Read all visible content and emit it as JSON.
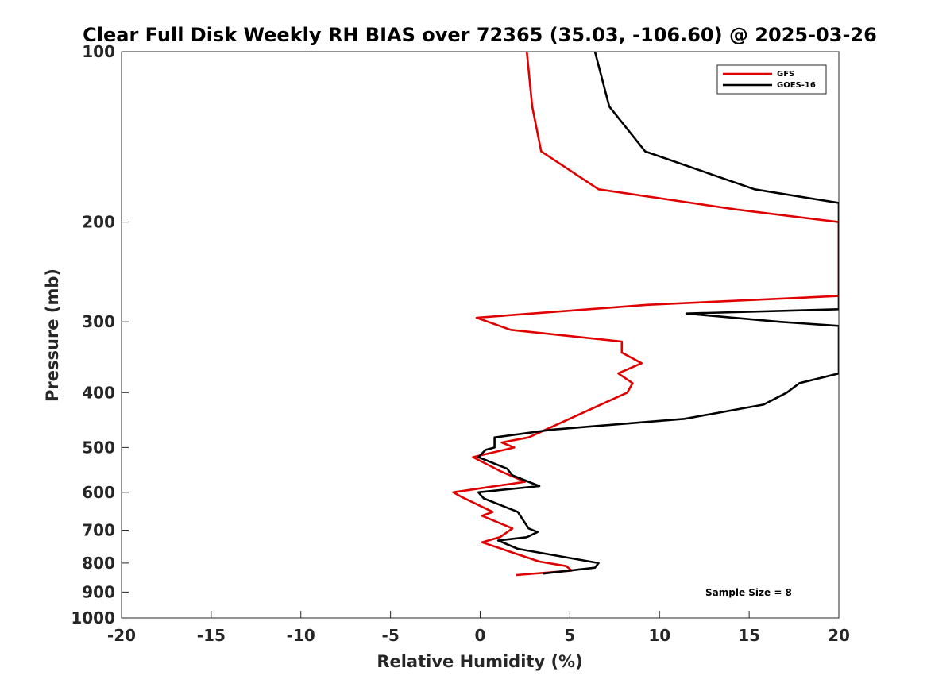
{
  "chart_data": {
    "type": "line",
    "title": "Clear Full Disk Weekly RH BIAS over 72365 (35.03, -106.60) @ 2025-03-26",
    "xlabel": "Relative Humidity (%)",
    "ylabel": "Pressure (mb)",
    "xlim": [
      -20,
      20
    ],
    "ylim": [
      1000,
      100
    ],
    "yscale": "log",
    "xticks": [
      "-20",
      "-15",
      "-10",
      "-5",
      "0",
      "5",
      "10",
      "15",
      "20"
    ],
    "yticks": [
      "100",
      "200",
      "300",
      "400",
      "500",
      "600",
      "700",
      "800",
      "900",
      "1000"
    ],
    "grid": false,
    "legend_position": "top-right",
    "annotation": "Sample Size = 8",
    "series": [
      {
        "name": "GFS",
        "color": "#e00000",
        "points": [
          [
            2.6,
            100
          ],
          [
            2.9,
            125
          ],
          [
            3.4,
            150
          ],
          [
            6.6,
            175
          ],
          [
            14.3,
            190
          ],
          [
            20,
            200
          ],
          [
            20,
            270
          ],
          [
            9.3,
            280
          ],
          [
            -0.2,
            295
          ],
          [
            1.7,
            310
          ],
          [
            7.9,
            325
          ],
          [
            7.9,
            340
          ],
          [
            9,
            355
          ],
          [
            7.7,
            370
          ],
          [
            8.5,
            385
          ],
          [
            8.2,
            400
          ],
          [
            2.7,
            480
          ],
          [
            1.2,
            490
          ],
          [
            1.9,
            500
          ],
          [
            -0.4,
            520
          ],
          [
            1.1,
            550
          ],
          [
            2.5,
            575
          ],
          [
            -1.5,
            600
          ],
          [
            -1.1,
            610
          ],
          [
            0.7,
            650
          ],
          [
            0.1,
            660
          ],
          [
            1.8,
            695
          ],
          [
            1.1,
            720
          ],
          [
            0.1,
            735
          ],
          [
            3.3,
            795
          ],
          [
            4.8,
            810
          ],
          [
            5.1,
            825
          ],
          [
            2,
            840
          ]
        ]
      },
      {
        "name": "GOES-16",
        "color": "#000000",
        "points": [
          [
            6.4,
            100
          ],
          [
            7.2,
            125
          ],
          [
            9.2,
            150
          ],
          [
            15.3,
            175
          ],
          [
            20,
            185
          ],
          [
            20,
            285
          ],
          [
            11.5,
            290
          ],
          [
            16.7,
            300
          ],
          [
            20,
            305
          ],
          [
            20,
            370
          ],
          [
            17.8,
            385
          ],
          [
            17.1,
            400
          ],
          [
            15.8,
            420
          ],
          [
            11.4,
            445
          ],
          [
            4,
            465
          ],
          [
            0.8,
            480
          ],
          [
            0.8,
            500
          ],
          [
            0.3,
            505
          ],
          [
            -0.1,
            520
          ],
          [
            1.5,
            545
          ],
          [
            1.8,
            560
          ],
          [
            3.3,
            585
          ],
          [
            -0.1,
            600
          ],
          [
            0.2,
            615
          ],
          [
            2.1,
            650
          ],
          [
            2.7,
            695
          ],
          [
            3.2,
            705
          ],
          [
            2.6,
            720
          ],
          [
            1,
            730
          ],
          [
            2.1,
            755
          ],
          [
            6.6,
            800
          ],
          [
            6.4,
            815
          ],
          [
            3.5,
            835
          ]
        ]
      }
    ]
  }
}
